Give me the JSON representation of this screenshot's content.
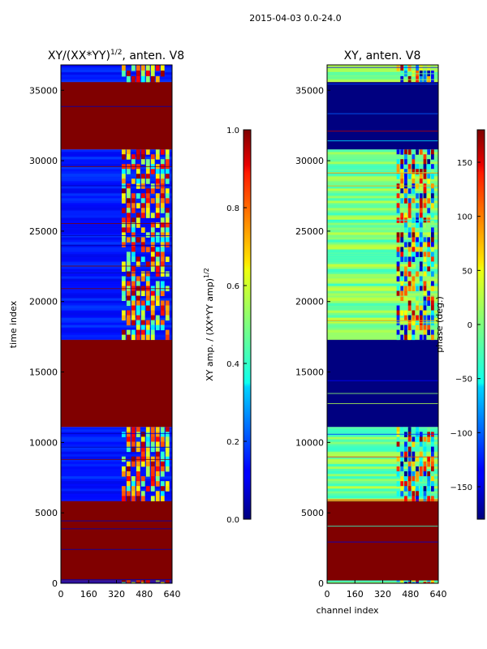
{
  "figure": {
    "suptitle": "2015-04-03 0.0-24.0"
  },
  "chart_data": [
    {
      "type": "heatmap",
      "title": "XY/(XX*YY)",
      "title_superscript": "1/2",
      "title_suffix": ", anten. V8",
      "xlabel": "",
      "ylabel": "time index",
      "xlim": [
        0,
        640
      ],
      "ylim": [
        0,
        36800
      ],
      "xticks": [
        "0",
        "160",
        "320",
        "480",
        "640"
      ],
      "yticks": [
        "0",
        "5000",
        "10000",
        "15000",
        "20000",
        "25000",
        "30000",
        "35000"
      ],
      "colormap": "jet",
      "colorbar": {
        "label": "XY amp. / (XX*YY amp)",
        "label_superscript": "1/2",
        "range": [
          0.0,
          1.0
        ],
        "ticks": [
          "0.0",
          "0.2",
          "0.4",
          "0.6",
          "0.8",
          "1.0"
        ]
      },
      "regions": [
        {
          "t0": 0,
          "t1": 200,
          "kind": "low",
          "value": 0.15
        },
        {
          "t0": 200,
          "t1": 5850,
          "kind": "saturated",
          "value": 1.0
        },
        {
          "t0": 5850,
          "t1": 11100,
          "kind": "low",
          "value": 0.15
        },
        {
          "t0": 11100,
          "t1": 17300,
          "kind": "saturated",
          "value": 1.0
        },
        {
          "t0": 17300,
          "t1": 30800,
          "kind": "low",
          "value": 0.15
        },
        {
          "t0": 30800,
          "t1": 35600,
          "kind": "saturated",
          "value": 1.0
        },
        {
          "t0": 35600,
          "t1": 36800,
          "kind": "low",
          "value": 0.15
        }
      ],
      "bright_channel_band": [
        350,
        630
      ]
    },
    {
      "type": "heatmap",
      "title": "XY, anten. V8",
      "xlabel": "channel index",
      "ylabel": "",
      "xlim": [
        0,
        640
      ],
      "ylim": [
        0,
        36800
      ],
      "xticks": [
        "0",
        "160",
        "320",
        "480",
        "640"
      ],
      "yticks": [
        "0",
        "5000",
        "10000",
        "15000",
        "20000",
        "25000",
        "30000",
        "35000"
      ],
      "colormap": "jet",
      "colorbar": {
        "label": "phase (deg.)",
        "range": [
          -180,
          180
        ],
        "ticks": [
          "150",
          "100",
          "50",
          "0",
          "−50",
          "−100",
          "−150"
        ]
      },
      "regions": [
        {
          "t0": 0,
          "t1": 200,
          "kind": "noisy",
          "value": 0
        },
        {
          "t0": 200,
          "t1": 5850,
          "kind": "saturated",
          "value": 180
        },
        {
          "t0": 5850,
          "t1": 11100,
          "kind": "mid",
          "value": 0
        },
        {
          "t0": 11100,
          "t1": 17300,
          "kind": "deep",
          "value": -180
        },
        {
          "t0": 17300,
          "t1": 30800,
          "kind": "mid",
          "value": 0
        },
        {
          "t0": 30800,
          "t1": 35600,
          "kind": "deep",
          "value": -180
        },
        {
          "t0": 35600,
          "t1": 36800,
          "kind": "mid",
          "value": 0
        }
      ],
      "bright_channel_band": [
        400,
        620
      ]
    }
  ]
}
